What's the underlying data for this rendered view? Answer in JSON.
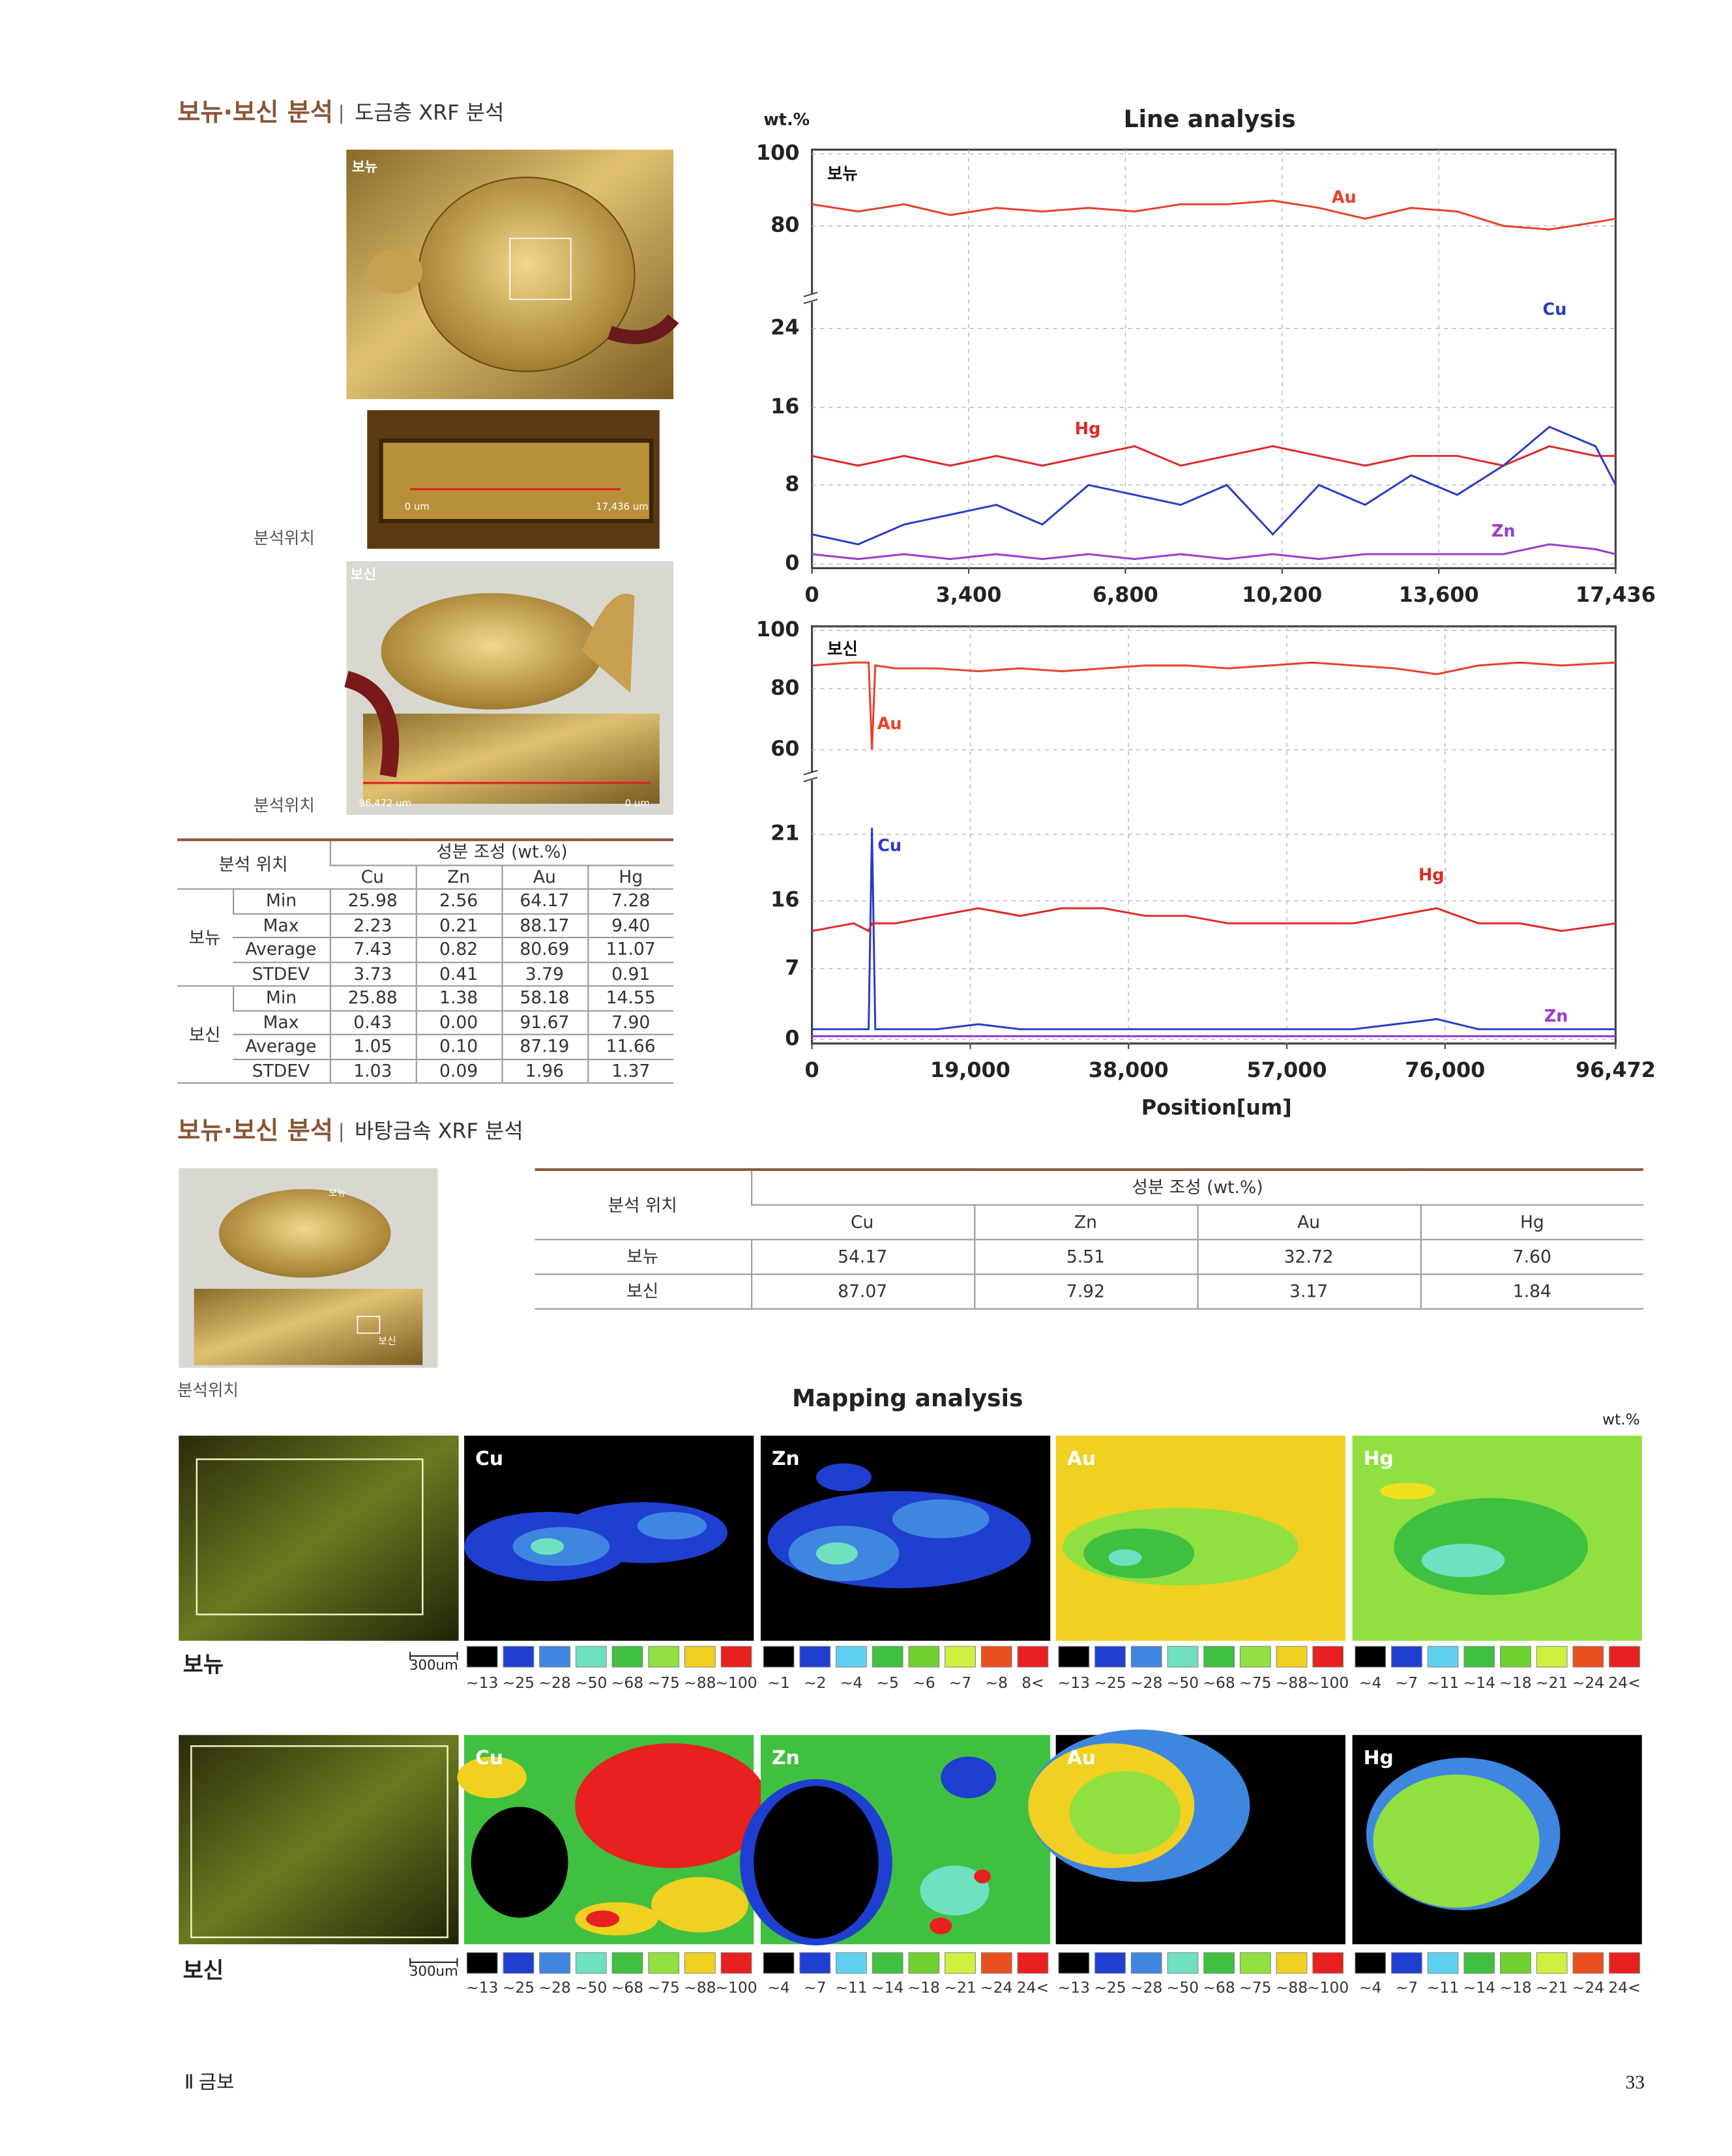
{
  "section1": {
    "title": "보뉴·보신 분석",
    "separator": "|",
    "subtitle": "도금층 XRF 분석",
    "photo_labels": [
      "보뉴",
      "보신"
    ],
    "scale_labels": [
      "0 um",
      "17,436 um",
      "96,472 um",
      "0 um"
    ],
    "location_labels": [
      "분석위치",
      "분석위치"
    ]
  },
  "table1": {
    "header": {
      "location": "분석 위치",
      "composition": "성분 조성 (wt.%)",
      "elements": [
        "Cu",
        "Zn",
        "Au",
        "Hg"
      ]
    },
    "groups": [
      {
        "name": "보뉴",
        "rows": [
          [
            "Min",
            "25.98",
            "2.56",
            "64.17",
            "7.28"
          ],
          [
            "Max",
            "2.23",
            "0.21",
            "88.17",
            "9.40"
          ],
          [
            "Average",
            "7.43",
            "0.82",
            "80.69",
            "11.07"
          ],
          [
            "STDEV",
            "3.73",
            "0.41",
            "3.79",
            "0.91"
          ]
        ]
      },
      {
        "name": "보신",
        "rows": [
          [
            "Min",
            "25.88",
            "1.38",
            "58.18",
            "14.55"
          ],
          [
            "Max",
            "0.43",
            "0.00",
            "91.67",
            "7.90"
          ],
          [
            "Average",
            "1.05",
            "0.10",
            "87.19",
            "11.66"
          ],
          [
            "STDEV",
            "1.03",
            "0.09",
            "1.96",
            "1.37"
          ]
        ]
      }
    ]
  },
  "line_analysis": {
    "type": "line",
    "title": "Line analysis",
    "y_unit": "wt.%",
    "x_label": "Position[um]",
    "panels": [
      {
        "label": "보뉴",
        "xlim": [
          0,
          17436
        ],
        "xticks": [
          0,
          {
            "value": 3400,
            "label": "3,400"
          },
          {
            "value": 6800,
            "label": "6,800"
          },
          {
            "value": 10200,
            "label": "10,200"
          },
          {
            "value": 13600,
            "label": "13,600"
          },
          {
            "value": 17436,
            "label": "17,436"
          }
        ],
        "ylim": [
          0,
          100
        ],
        "yticks": [
          0,
          8,
          16,
          24,
          80,
          100
        ],
        "grid": true,
        "x": [
          0,
          1000,
          2000,
          3000,
          4000,
          5000,
          6000,
          7000,
          8000,
          9000,
          10000,
          11000,
          12000,
          13000,
          14000,
          15000,
          16000,
          17000,
          17436
        ],
        "series": [
          {
            "name": "Au",
            "color": "#e8402a",
            "values": [
              86,
              84,
              86,
              83,
              85,
              84,
              85,
              84,
              86,
              86,
              87,
              85,
              82,
              85,
              84,
              80,
              78,
              81,
              82
            ]
          },
          {
            "name": "Hg",
            "color": "#e02828",
            "values": [
              11,
              10,
              11,
              10,
              11,
              10,
              11,
              12,
              10,
              11,
              12,
              11,
              10,
              11,
              11,
              10,
              12,
              11,
              11
            ]
          },
          {
            "name": "Cu",
            "color": "#2a3ac8",
            "values": [
              3,
              2,
              4,
              5,
              6,
              4,
              8,
              7,
              6,
              8,
              3,
              8,
              6,
              9,
              7,
              10,
              14,
              12,
              8
            ]
          },
          {
            "name": "Zn",
            "color": "#9a3ad0",
            "values": [
              1,
              0.5,
              1,
              0.5,
              1,
              0.5,
              1,
              0.5,
              1,
              0.5,
              1,
              0.5,
              1,
              1,
              1,
              1,
              2,
              1.5,
              1
            ]
          }
        ]
      },
      {
        "label": "보신",
        "xlim": [
          0,
          96472
        ],
        "xticks": [
          0,
          {
            "value": 19000,
            "label": "19,000"
          },
          {
            "value": 38000,
            "label": "38,000"
          },
          {
            "value": 57000,
            "label": "57,000"
          },
          {
            "value": 76000,
            "label": "76,000"
          },
          {
            "value": 96472,
            "label": "96,472"
          }
        ],
        "ylim": [
          0,
          100
        ],
        "yticks": [
          0,
          7,
          16,
          21,
          60,
          80,
          100
        ],
        "grid": true,
        "x": [
          0,
          5000,
          6800,
          7200,
          7600,
          10000,
          15000,
          20000,
          25000,
          30000,
          35000,
          40000,
          45000,
          50000,
          55000,
          60000,
          65000,
          70000,
          75000,
          80000,
          85000,
          90000,
          96472
        ],
        "series": [
          {
            "name": "Au",
            "color": "#e8402a",
            "values": [
              88,
              89,
              89,
              60,
              88,
              87,
              87,
              86,
              87,
              86,
              87,
              88,
              88,
              87,
              88,
              89,
              88,
              87,
              85,
              88,
              89,
              88,
              89
            ]
          },
          {
            "name": "Cu",
            "color": "#2a3ac8",
            "values": [
              1,
              1,
              1,
              24,
              1,
              1,
              1,
              1.5,
              1,
              1,
              1,
              1,
              1,
              1,
              1,
              1,
              1,
              1.5,
              2,
              1,
              1,
              1,
              1
            ]
          },
          {
            "name": "Hg",
            "color": "#e02828",
            "values": [
              12,
              13,
              12,
              13,
              13,
              13,
              14,
              15,
              14,
              15,
              15,
              14,
              14,
              13,
              13,
              13,
              13,
              14,
              15,
              13,
              13,
              12,
              13
            ]
          },
          {
            "name": "Zn",
            "color": "#9a3ad0",
            "values": [
              0.3,
              0.3,
              0.3,
              0.3,
              0.3,
              0.3,
              0.3,
              0.3,
              0.3,
              0.3,
              0.3,
              0.3,
              0.3,
              0.3,
              0.3,
              0.3,
              0.3,
              0.3,
              0.3,
              0.3,
              0.3,
              0.3,
              0.3
            ]
          }
        ]
      }
    ]
  },
  "section2": {
    "title": "보뉴·보신 분석",
    "separator": "|",
    "subtitle": "바탕금속 XRF 분석",
    "photo_labels": [
      "보뉴",
      "보신"
    ],
    "location_label": "분석위치"
  },
  "table2": {
    "header": {
      "location": "분석 위치",
      "composition": "성분 조성 (wt.%)",
      "elements": [
        "Cu",
        "Zn",
        "Au",
        "Hg"
      ]
    },
    "rows": [
      [
        "보뉴",
        "54.17",
        "5.51",
        "32.72",
        "7.60"
      ],
      [
        "보신",
        "87.07",
        "7.92",
        "3.17",
        "1.84"
      ]
    ]
  },
  "mapping": {
    "title": "Mapping analysis",
    "unit": "wt.%",
    "rows": [
      {
        "label": "보뉴",
        "scale": "300um",
        "maps": [
          {
            "element": "Cu",
            "legend": [
              "~13",
              "~25",
              "~28",
              "~50",
              "~68",
              "~75",
              "~88",
              "~100"
            ]
          },
          {
            "element": "Zn",
            "legend": [
              "~1",
              "~2",
              "~4",
              "~5",
              "~6",
              "~7",
              "~8",
              "8<"
            ]
          },
          {
            "element": "Au",
            "legend": [
              "~13",
              "~25",
              "~28",
              "~50",
              "~68",
              "~75",
              "~88",
              "~100"
            ]
          },
          {
            "element": "Hg",
            "legend": [
              "~4",
              "~7",
              "~11",
              "~14",
              "~18",
              "~21",
              "~24",
              "24<"
            ]
          }
        ]
      },
      {
        "label": "보신",
        "scale": "300um",
        "maps": [
          {
            "element": "Cu",
            "legend": [
              "~13",
              "~25",
              "~28",
              "~50",
              "~68",
              "~75",
              "~88",
              "~100"
            ]
          },
          {
            "element": "Zn",
            "legend": [
              "~4",
              "~7",
              "~11",
              "~14",
              "~18",
              "~21",
              "~24",
              "24<"
            ]
          },
          {
            "element": "Au",
            "legend": [
              "~13",
              "~25",
              "~28",
              "~50",
              "~68",
              "~75",
              "~88",
              "~100"
            ]
          },
          {
            "element": "Hg",
            "legend": [
              "~4",
              "~7",
              "~11",
              "~14",
              "~18",
              "~21",
              "~24",
              "24<"
            ]
          }
        ]
      }
    ]
  },
  "footer": {
    "chapter": "Ⅱ 금보",
    "page": "33"
  }
}
